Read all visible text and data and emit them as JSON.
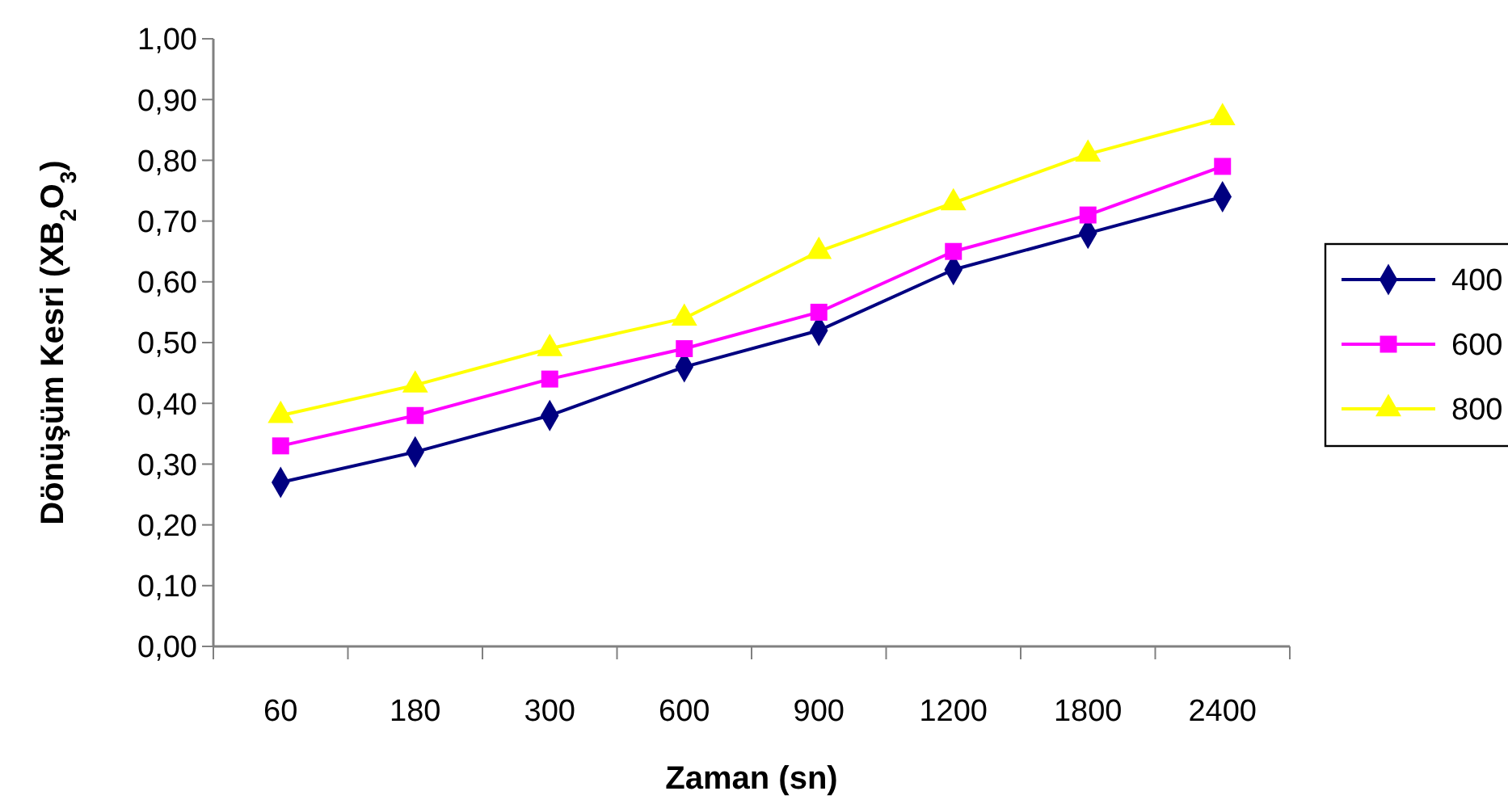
{
  "chart_data": {
    "type": "line",
    "xlabel": "Zaman (sn)",
    "ylabel": "Dönüşüm Kesri (XB$_{2}$O$_{3}$)",
    "categories": [
      "60",
      "180",
      "300",
      "600",
      "900",
      "1200",
      "1800",
      "2400"
    ],
    "series": [
      {
        "name": "400",
        "color": "#000080",
        "marker": "diamond",
        "values": [
          0.27,
          0.32,
          0.38,
          0.46,
          0.52,
          0.62,
          0.68,
          0.74
        ]
      },
      {
        "name": "600",
        "color": "#ff00ff",
        "marker": "square",
        "values": [
          0.33,
          0.38,
          0.44,
          0.49,
          0.55,
          0.65,
          0.71,
          0.79
        ]
      },
      {
        "name": "800",
        "color": "#ffff00",
        "marker": "triangle",
        "values": [
          0.38,
          0.43,
          0.49,
          0.54,
          0.65,
          0.73,
          0.81,
          0.87
        ]
      }
    ],
    "ylim": [
      0,
      1
    ],
    "yticks": [
      {
        "value": 0,
        "label": "0,00"
      },
      {
        "value": 0.1,
        "label": "0,10"
      },
      {
        "value": 0.2,
        "label": "0,20"
      },
      {
        "value": 0.3,
        "label": "0,30"
      },
      {
        "value": 0.4,
        "label": "0,40"
      },
      {
        "value": 0.5,
        "label": "0,50"
      },
      {
        "value": 0.6,
        "label": "0,60"
      },
      {
        "value": 0.7,
        "label": "0,70"
      },
      {
        "value": 0.8,
        "label": "0,80"
      },
      {
        "value": 0.9,
        "label": "0,90"
      },
      {
        "value": 1,
        "label": "1,00"
      }
    ],
    "grid": false,
    "legend": "right"
  }
}
